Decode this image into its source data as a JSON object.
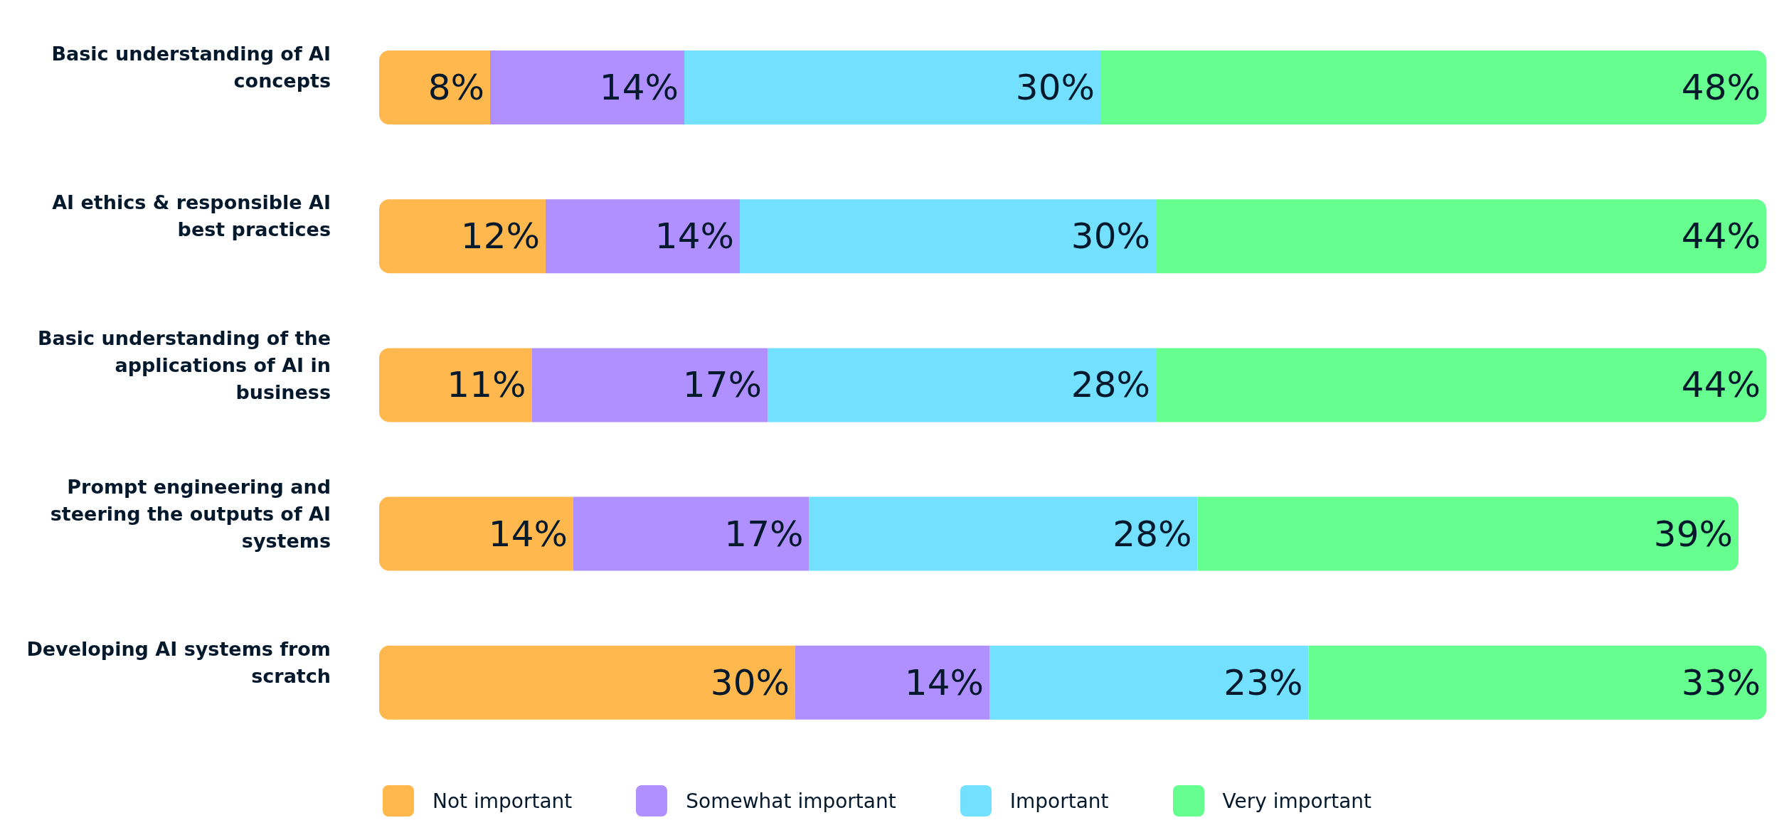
{
  "chart_data": {
    "type": "bar",
    "orientation": "horizontal",
    "stacked": true,
    "categories": [
      "Basic understanding of AI concepts",
      "AI ethics & responsible AI best practices",
      "Basic understanding of the applications of AI in business",
      "Prompt engineering and steering the outputs of AI systems",
      "Developing AI systems from scratch"
    ],
    "series": [
      {
        "name": "Not important",
        "color": "#ffb84d",
        "values": [
          8,
          12,
          11,
          14,
          30
        ],
        "value_labels": [
          "8%",
          "12%",
          "11%",
          "14%",
          "30%"
        ]
      },
      {
        "name": "Somewhat important",
        "color": "#b08fff",
        "values": [
          14,
          14,
          17,
          17,
          14
        ],
        "value_labels": [
          "14%",
          "14%",
          "17%",
          "17%",
          "14%"
        ]
      },
      {
        "name": "Important",
        "color": "#73e0ff",
        "values": [
          30,
          30,
          28,
          28,
          23
        ],
        "value_labels": [
          "30%",
          "30%",
          "28%",
          "28%",
          "23%"
        ]
      },
      {
        "name": "Very important",
        "color": "#66ff8f",
        "values": [
          48,
          44,
          44,
          39,
          33
        ],
        "value_labels": [
          "48%",
          "44%",
          "44%",
          "39%",
          "33%"
        ]
      }
    ],
    "xlim": [
      0,
      100
    ],
    "tick_labels": "y",
    "grid": false,
    "legend": "bottom"
  }
}
